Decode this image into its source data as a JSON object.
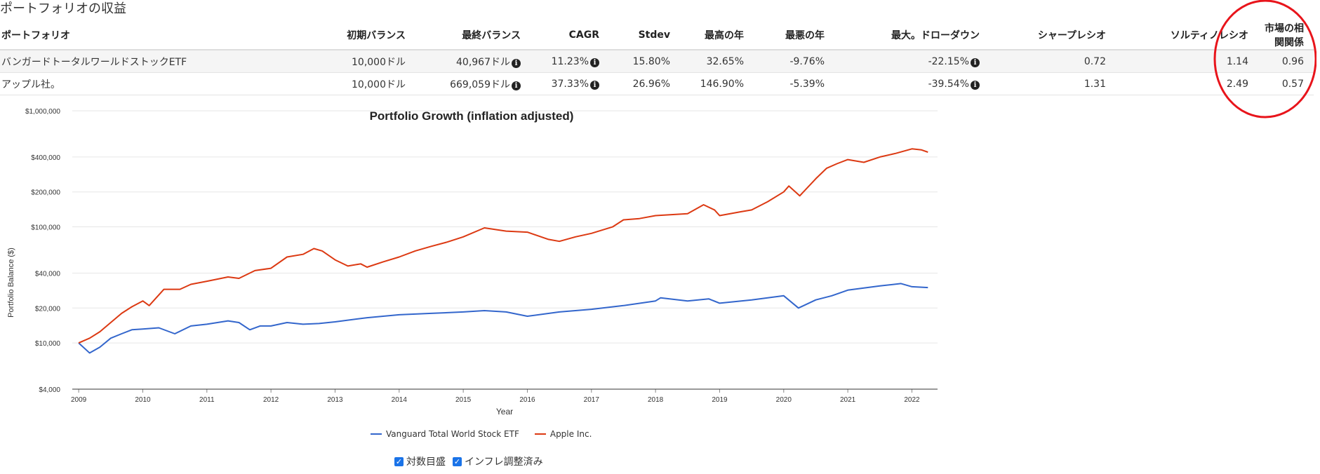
{
  "section_title": "ポートフォリオの収益",
  "table": {
    "headers": [
      "ポートフォリオ",
      "初期バランス",
      "最終バランス",
      "CAGR",
      "Stdev",
      "最高の年",
      "最悪の年",
      "最大。ドローダウン",
      "シャープレシオ",
      "ソルティノレシオ",
      "市場の相関関係"
    ],
    "rows": [
      [
        "バンガードトータルワールドストックETF",
        "10,000ドル",
        "40,967ドル",
        "11.23%",
        "15.80%",
        "32.65%",
        "-9.76%",
        "-22.15%",
        "0.72",
        "1.14",
        "0.96"
      ],
      [
        "アップル社。",
        "10,000ドル",
        "669,059ドル",
        "37.33%",
        "26.96%",
        "146.90%",
        "-5.39%",
        "-39.54%",
        "1.31",
        "2.49",
        "0.57"
      ]
    ],
    "info_icon_glyph": "i"
  },
  "highlight_color": "#e8141b",
  "chart_data": {
    "type": "line",
    "title": "Portfolio Growth (inflation adjusted)",
    "xlabel": "Year",
    "ylabel": "Portfolio Balance ($)",
    "y_scale": "log",
    "ylim": [
      4000,
      1000000
    ],
    "xlim": [
      2008.9,
      2022.4
    ],
    "grid": true,
    "y_ticks": [
      4000,
      10000,
      20000,
      40000,
      100000,
      200000,
      400000,
      1000000
    ],
    "y_tick_labels": [
      "$4,000",
      "$10,000",
      "$20,000",
      "$40,000",
      "$100,000",
      "$200,000",
      "$400,000",
      "$1,000,000"
    ],
    "x_ticks": [
      2009,
      2010,
      2011,
      2012,
      2013,
      2014,
      2015,
      2016,
      2017,
      2018,
      2019,
      2020,
      2021,
      2022
    ],
    "x_tick_labels": [
      "2009",
      "2010",
      "2011",
      "2012",
      "2013",
      "2014",
      "2015",
      "2016",
      "2017",
      "2018",
      "2019",
      "2020",
      "2021",
      "2022"
    ],
    "legend_position": "bottom",
    "series": [
      {
        "name": "Vanguard Total World Stock ETF",
        "color": "#3366cc",
        "x": [
          2009.0,
          2009.17,
          2009.33,
          2009.5,
          2009.67,
          2009.83,
          2010.0,
          2010.25,
          2010.5,
          2010.75,
          2011.0,
          2011.33,
          2011.5,
          2011.67,
          2011.83,
          2012.0,
          2012.25,
          2012.5,
          2012.75,
          2013.0,
          2013.5,
          2014.0,
          2014.5,
          2015.0,
          2015.33,
          2015.67,
          2016.0,
          2016.5,
          2017.0,
          2017.5,
          2018.0,
          2018.08,
          2018.5,
          2018.83,
          2019.0,
          2019.5,
          2020.0,
          2020.23,
          2020.5,
          2020.75,
          2021.0,
          2021.5,
          2021.83,
          2022.0,
          2022.25
        ],
        "values": [
          10000,
          8200,
          9200,
          11000,
          12000,
          13000,
          13200,
          13500,
          12000,
          14000,
          14500,
          15500,
          15000,
          13000,
          14000,
          14000,
          15000,
          14500,
          14700,
          15200,
          16500,
          17500,
          18000,
          18500,
          19000,
          18500,
          17000,
          18500,
          19500,
          21000,
          23000,
          24500,
          23000,
          24000,
          22000,
          23500,
          25500,
          20000,
          23500,
          25500,
          28500,
          31000,
          32500,
          30500,
          30000
        ]
      },
      {
        "name": "Apple Inc.",
        "color": "#dc3912",
        "x": [
          2009.0,
          2009.17,
          2009.33,
          2009.5,
          2009.67,
          2009.83,
          2010.0,
          2010.1,
          2010.33,
          2010.58,
          2010.75,
          2011.0,
          2011.33,
          2011.5,
          2011.75,
          2012.0,
          2012.25,
          2012.5,
          2012.67,
          2012.8,
          2013.0,
          2013.2,
          2013.4,
          2013.5,
          2013.75,
          2014.0,
          2014.25,
          2014.5,
          2014.75,
          2015.0,
          2015.33,
          2015.67,
          2016.0,
          2016.33,
          2016.5,
          2016.75,
          2017.0,
          2017.33,
          2017.5,
          2017.75,
          2018.0,
          2018.5,
          2018.75,
          2018.92,
          2019.0,
          2019.33,
          2019.5,
          2019.75,
          2020.0,
          2020.08,
          2020.25,
          2020.5,
          2020.67,
          2020.83,
          2021.0,
          2021.25,
          2021.5,
          2021.75,
          2022.0,
          2022.15,
          2022.25
        ],
        "values": [
          10000,
          11000,
          12500,
          15000,
          18000,
          20500,
          23000,
          21000,
          29000,
          29000,
          32000,
          34000,
          37000,
          36000,
          42000,
          44000,
          55000,
          58000,
          65000,
          62000,
          52000,
          46000,
          48000,
          45000,
          50000,
          55000,
          62000,
          68000,
          74000,
          82000,
          98000,
          92000,
          90000,
          78000,
          75000,
          82000,
          88000,
          100000,
          115000,
          118000,
          125000,
          130000,
          155000,
          140000,
          125000,
          135000,
          140000,
          165000,
          200000,
          225000,
          185000,
          260000,
          320000,
          350000,
          380000,
          360000,
          400000,
          430000,
          470000,
          460000,
          440000
        ]
      }
    ]
  },
  "legend": {
    "items": [
      {
        "label": "Vanguard Total World Stock ETF",
        "color": "#3366cc"
      },
      {
        "label": "Apple Inc.",
        "color": "#dc3912"
      }
    ]
  },
  "controls": {
    "log_scale_label": "対数目盛",
    "inflation_label": "インフレ調整済み",
    "check_glyph": "✓"
  }
}
